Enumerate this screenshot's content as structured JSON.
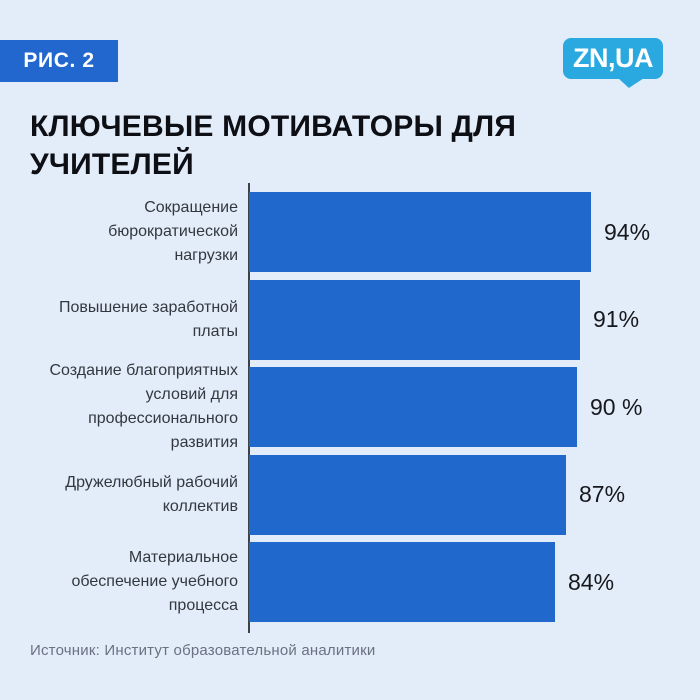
{
  "badge": {
    "label": "РИС. 2"
  },
  "logo": {
    "text": "ZN,UA"
  },
  "title": "КЛЮЧЕВЫЕ МОТИВАТОРЫ ДЛЯ УЧИТЕЛЕЙ",
  "source": "Источник: Институт образовательной аналитики",
  "colors": {
    "background": "#e3edfa",
    "bar": "#2168cc",
    "badge": "#2267cd",
    "logo": "#2aa9e0",
    "axis": "#3d4148",
    "title_text": "#0d0f14",
    "category_text": "#33383f",
    "value_text": "#17181c",
    "source_text": "#6a7180"
  },
  "chart_data": {
    "type": "bar",
    "orientation": "horizontal",
    "title": "КЛЮЧЕВЫЕ МОТИВАТОРЫ ДЛЯ УЧИТЕЛЕЙ",
    "categories": [
      "Сокращение бюрократической нагрузки",
      "Повышение заработной платы",
      "Создание благоприятных условий для профессионального развития",
      "Дружелюбный рабочий коллектив",
      "Материальное обеспечение учебного процесса"
    ],
    "categories_display": [
      "Сокращение\nбюрократической\nнагрузки",
      "Повышение заработной\nплаты",
      "Создание благоприятных\nусловий для\nпрофессионального\nразвития",
      "Дружелюбный рабочий\nколлектив",
      "Материальное\nобеспечение учебного\nпроцесса"
    ],
    "values": [
      94,
      91,
      90,
      87,
      84
    ],
    "value_labels": [
      "94%",
      "91%",
      "90 %",
      "87%",
      "84%"
    ],
    "unit": "%",
    "xlim": [
      0,
      100
    ],
    "grid": false,
    "legend": false,
    "bar_color": "#2168cc",
    "source": "Источник: Институт образовательной аналитики"
  }
}
